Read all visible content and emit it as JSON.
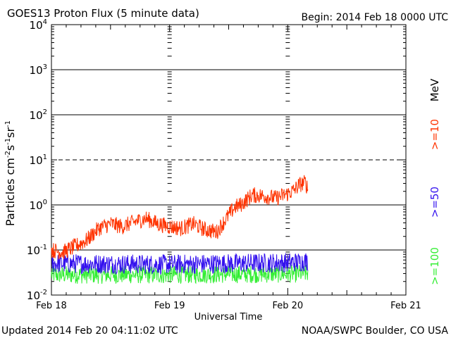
{
  "header": {
    "title": "GOES13 Proton Flux (5 minute data)",
    "begin": "Begin: 2014 Feb 18 0000 UTC"
  },
  "footer": {
    "updated": "Updated 2014 Feb 20 04:11:02 UTC",
    "credit": "NOAA/SWPC Boulder, CO USA"
  },
  "legend": {
    "unit": "MeV",
    "items": [
      {
        "label": ">=10",
        "color": "#ff3300"
      },
      {
        "label": ">=50",
        "color": "#3311ee"
      },
      {
        "label": ">=100",
        "color": "#33ee33"
      }
    ]
  },
  "chart_data": {
    "type": "line",
    "title": "GOES13 Proton Flux (5 minute data)",
    "xlabel": "Universal Time",
    "ylabel": "Particles cm⁻²s⁻¹sr⁻¹",
    "yscale": "log",
    "ylim_exponent": [
      -2,
      4
    ],
    "y_ticks": [
      {
        "base": "10",
        "exp": "-2"
      },
      {
        "base": "10",
        "exp": "-1"
      },
      {
        "base": "10",
        "exp": "0"
      },
      {
        "base": "10",
        "exp": "1"
      },
      {
        "base": "10",
        "exp": "2"
      },
      {
        "base": "10",
        "exp": "3"
      },
      {
        "base": "10",
        "exp": "4"
      }
    ],
    "x_ticks": [
      "Feb 18",
      "Feb 19",
      "Feb 20",
      "Feb 21"
    ],
    "xlim_days": [
      0,
      3
    ],
    "threshold_lines_exponent": [
      -1,
      0,
      2,
      3
    ],
    "dashed_line_exponent": 1,
    "series": [
      {
        "name": ">=10 MeV",
        "color": "#ff3300",
        "noise_log": 0.18,
        "points": [
          [
            0.0,
            -1.0
          ],
          [
            0.1,
            -1.05
          ],
          [
            0.2,
            -0.92
          ],
          [
            0.3,
            -0.78
          ],
          [
            0.4,
            -0.52
          ],
          [
            0.5,
            -0.42
          ],
          [
            0.6,
            -0.48
          ],
          [
            0.7,
            -0.38
          ],
          [
            0.8,
            -0.3
          ],
          [
            0.9,
            -0.42
          ],
          [
            1.0,
            -0.48
          ],
          [
            1.1,
            -0.52
          ],
          [
            1.2,
            -0.42
          ],
          [
            1.3,
            -0.55
          ],
          [
            1.4,
            -0.6
          ],
          [
            1.48,
            -0.3
          ],
          [
            1.55,
            -0.05
          ],
          [
            1.6,
            0.0
          ],
          [
            1.7,
            0.22
          ],
          [
            1.8,
            0.2
          ],
          [
            1.9,
            0.15
          ],
          [
            2.0,
            0.25
          ],
          [
            2.05,
            0.32
          ],
          [
            2.1,
            0.45
          ],
          [
            2.15,
            0.5
          ],
          [
            2.17,
            0.35
          ]
        ]
      },
      {
        "name": ">=50 MeV",
        "color": "#3311ee",
        "noise_log": 0.22,
        "points": [
          [
            0.0,
            -1.3
          ],
          [
            1.0,
            -1.32
          ],
          [
            2.0,
            -1.28
          ],
          [
            2.17,
            -1.25
          ]
        ]
      },
      {
        "name": ">=100 MeV",
        "color": "#33ee33",
        "noise_log": 0.2,
        "points": [
          [
            0.0,
            -1.55
          ],
          [
            1.0,
            -1.55
          ],
          [
            2.0,
            -1.53
          ],
          [
            2.17,
            -1.52
          ]
        ]
      }
    ]
  }
}
